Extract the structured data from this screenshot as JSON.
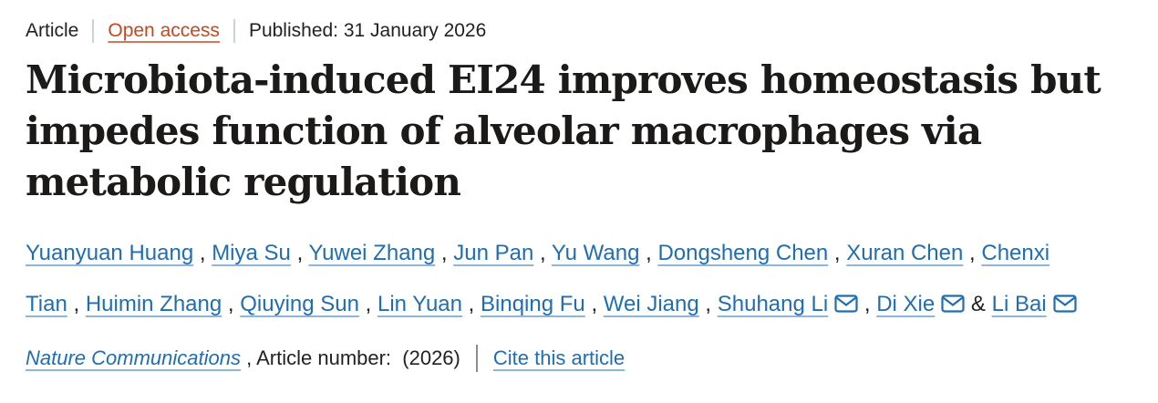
{
  "meta": {
    "type_label": "Article",
    "access_label": "Open access",
    "published_label": "Published: 31 January 2026"
  },
  "title": {
    "lines": [
      "Microbiota-induced EI24 improves homeostasis but",
      "impedes function of alveolar macrophages via",
      "metabolic regulation"
    ]
  },
  "authors": {
    "lines": [
      [
        {
          "name": "Yuanyuan Huang",
          "email": false,
          "sep": ", "
        },
        {
          "name": "Miya Su",
          "email": false,
          "sep": ", "
        },
        {
          "name": "Yuwei Zhang",
          "email": false,
          "sep": ", "
        },
        {
          "name": "Jun Pan",
          "email": false,
          "sep": ", "
        },
        {
          "name": "Yu Wang",
          "email": false,
          "sep": ", "
        },
        {
          "name": "Dongsheng Chen",
          "email": false,
          "sep": ", "
        },
        {
          "name": "Xuran Chen",
          "email": false,
          "sep": ", "
        },
        {
          "name": "Chenxi",
          "email": false,
          "sep": ""
        }
      ],
      [
        {
          "name": "Tian",
          "email": false,
          "sep": ", "
        },
        {
          "name": "Huimin Zhang",
          "email": false,
          "sep": ", "
        },
        {
          "name": "Qiuying Sun",
          "email": false,
          "sep": ", "
        },
        {
          "name": "Lin Yuan",
          "email": false,
          "sep": ", "
        },
        {
          "name": "Binqing Fu",
          "email": false,
          "sep": ", "
        },
        {
          "name": "Wei Jiang",
          "email": false,
          "sep": ", "
        },
        {
          "name": "Shuhang Li",
          "email": true,
          "sep": ", "
        },
        {
          "name": "Di Xie",
          "email": true,
          "sep": " & "
        },
        {
          "name": "Li Bai",
          "email": true,
          "sep": ""
        }
      ]
    ]
  },
  "journal": {
    "name": "Nature Communications",
    "article_number_text": " , Article number:  (2026)",
    "cite_label": "Cite this article"
  },
  "colors": {
    "link_blue": "#1f6eb2",
    "open_access_orange": "#c5481f",
    "title_text": "#1c1a19",
    "body_text": "#222222",
    "separator_light": "#c9d4d9",
    "separator_dark": "#8c8c8c"
  }
}
